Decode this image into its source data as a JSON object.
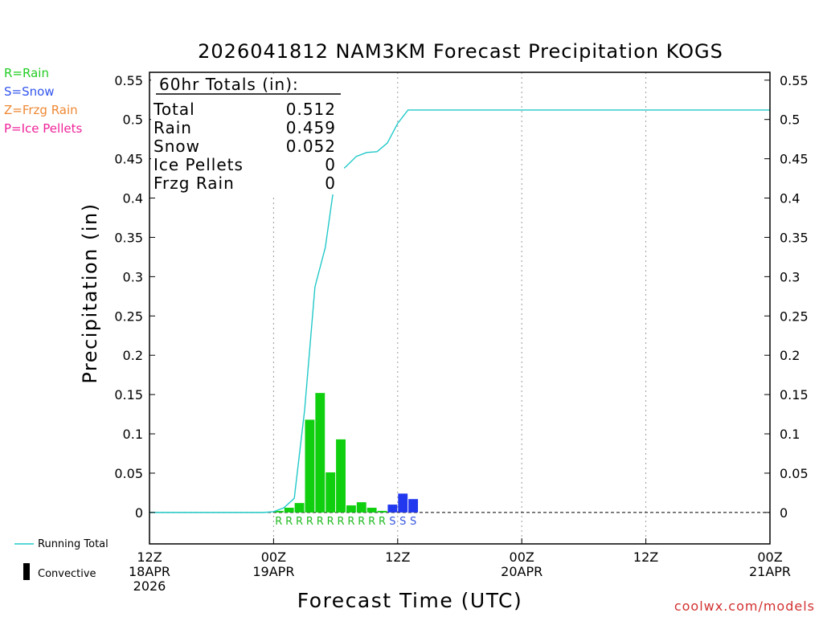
{
  "title": "2026041812 NAM3KM Forecast Precipitation KOGS",
  "legend_types": [
    {
      "label": "R=Rain",
      "color": "#22cc22"
    },
    {
      "label": "S=Snow",
      "color": "#3355ee"
    },
    {
      "label": "Z=Frzg Rain",
      "color": "#ee8833"
    },
    {
      "label": "P=Ice Pellets",
      "color": "#ee2299"
    }
  ],
  "totals_box": {
    "heading": "60hr Totals (in):",
    "rows": [
      {
        "label": "Total",
        "value": "0.512"
      },
      {
        "label": "Rain",
        "value": "0.459"
      },
      {
        "label": "Snow",
        "value": "0.052"
      },
      {
        "label": "Ice Pellets",
        "value": "0"
      },
      {
        "label": "Frzg Rain",
        "value": "0"
      }
    ]
  },
  "bottom_legend": {
    "running_total": "Running Total",
    "convective": "Convective",
    "running_total_color": "#22c8c8",
    "convective_color": "#000000"
  },
  "footer": "coolwx.com/models",
  "chart_data": {
    "type": "bar",
    "title": "2026041812 NAM3KM Forecast Precipitation KOGS",
    "xlabel": "Forecast Time (UTC)",
    "ylabel": "Precipitation (in)",
    "x_range_hours": [
      0,
      60
    ],
    "ylim": [
      -0.04,
      0.56
    ],
    "yticks": [
      0,
      0.05,
      0.1,
      0.15,
      0.2,
      0.25,
      0.3,
      0.35,
      0.4,
      0.45,
      0.5,
      0.55
    ],
    "ytick_labels": [
      "0",
      "0.05",
      "0.1",
      "0.15",
      "0.2",
      "0.25",
      "0.3",
      "0.35",
      "0.4",
      "0.45",
      "0.5",
      "0.55"
    ],
    "xticks": [
      {
        "hour": 0,
        "lines": [
          "12Z",
          "18APR",
          "2026"
        ]
      },
      {
        "hour": 12,
        "lines": [
          "00Z",
          "19APR"
        ]
      },
      {
        "hour": 24,
        "lines": [
          "12Z"
        ]
      },
      {
        "hour": 36,
        "lines": [
          "00Z",
          "20APR"
        ]
      },
      {
        "hour": 48,
        "lines": [
          "12Z"
        ]
      },
      {
        "hour": 60,
        "lines": [
          "00Z",
          "21APR"
        ]
      }
    ],
    "grid_hours": [
      12,
      24,
      36,
      48
    ],
    "bars": [
      {
        "hour": 13,
        "value": 0.002,
        "type": "R"
      },
      {
        "hour": 14,
        "value": 0.006,
        "type": "R"
      },
      {
        "hour": 15,
        "value": 0.012,
        "type": "R"
      },
      {
        "hour": 16,
        "value": 0.118,
        "type": "R"
      },
      {
        "hour": 17,
        "value": 0.152,
        "type": "R"
      },
      {
        "hour": 18,
        "value": 0.051,
        "type": "R"
      },
      {
        "hour": 19,
        "value": 0.093,
        "type": "R"
      },
      {
        "hour": 20,
        "value": 0.009,
        "type": "R"
      },
      {
        "hour": 21,
        "value": 0.013,
        "type": "R"
      },
      {
        "hour": 22,
        "value": 0.006,
        "type": "R"
      },
      {
        "hour": 23,
        "value": 0.002,
        "type": "R"
      },
      {
        "hour": 24,
        "value": 0.01,
        "type": "S"
      },
      {
        "hour": 25,
        "value": 0.024,
        "type": "S"
      },
      {
        "hour": 26,
        "value": 0.017,
        "type": "S"
      }
    ],
    "type_colors": {
      "R": "#0fcf0f",
      "S": "#2238ee"
    },
    "type_label_colors": {
      "R": "#22bb22",
      "S": "#3355dd"
    },
    "running_total": {
      "hours": [
        0,
        11,
        12,
        13,
        14,
        15,
        16,
        17,
        18,
        19,
        20,
        21,
        22,
        23,
        24,
        25,
        26,
        60
      ],
      "values": [
        0,
        0,
        0.001,
        0.006,
        0.018,
        0.13,
        0.287,
        0.337,
        0.43,
        0.44,
        0.453,
        0.458,
        0.459,
        0.47,
        0.495,
        0.512,
        0.512,
        0.512
      ]
    }
  }
}
